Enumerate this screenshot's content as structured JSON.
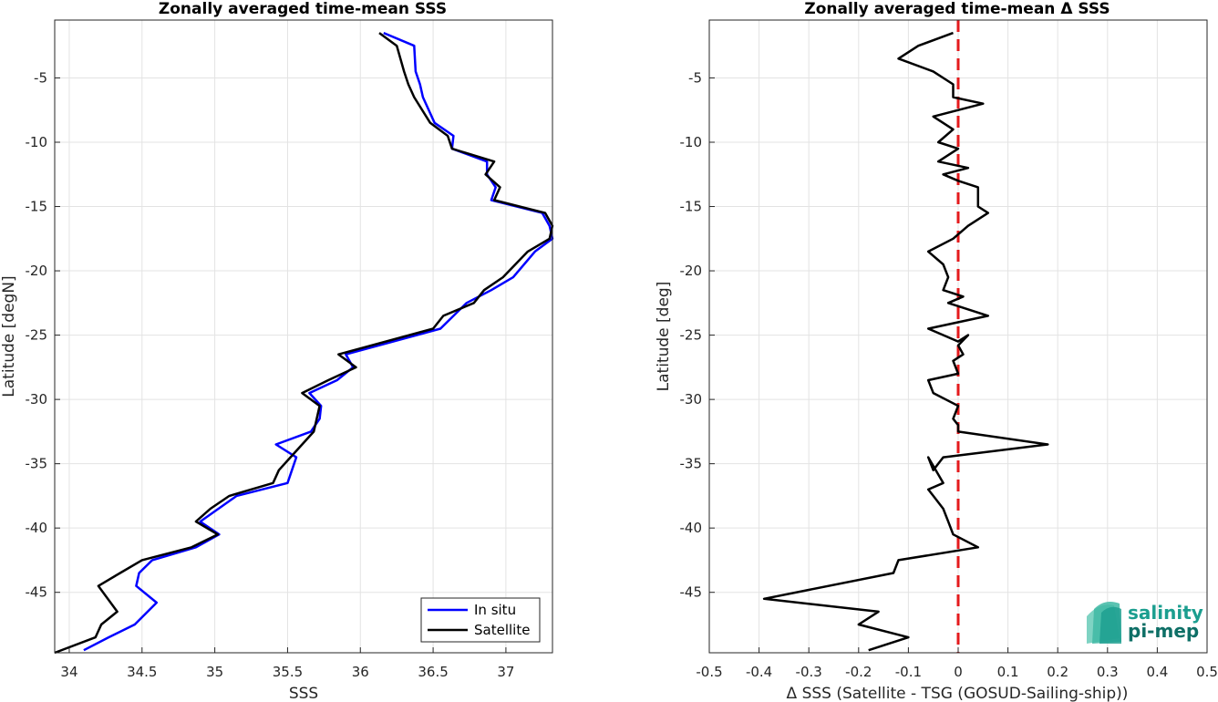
{
  "chart_data": [
    {
      "type": "line",
      "title": "Zonally averaged time-mean SSS",
      "xlabel": "SSS",
      "ylabel": "Latitude [degN]",
      "xlim": [
        33.9,
        37.32
      ],
      "ylim": [
        -49.7,
        -0.5
      ],
      "xticks": [
        "34",
        "34.5",
        "35",
        "35.5",
        "36",
        "36.5",
        "37"
      ],
      "yticks": [
        "-5",
        "-10",
        "-15",
        "-20",
        "-25",
        "-30",
        "-35",
        "-40",
        "-45"
      ],
      "grid": true,
      "legend_position": "bottom-right",
      "series": [
        {
          "name": "In situ",
          "color": "#0000ff",
          "points": [
            [
              36.16,
              -1.5
            ],
            [
              36.37,
              -2.5
            ],
            [
              36.38,
              -4.5
            ],
            [
              36.41,
              -5.5
            ],
            [
              36.43,
              -6.5
            ],
            [
              36.51,
              -8.5
            ],
            [
              36.64,
              -9.5
            ],
            [
              36.63,
              -10.5
            ],
            [
              36.87,
              -11.5
            ],
            [
              36.87,
              -12.5
            ],
            [
              36.93,
              -13.5
            ],
            [
              36.9,
              -14.5
            ],
            [
              37.25,
              -15.5
            ],
            [
              37.3,
              -16.5
            ],
            [
              37.32,
              -17.5
            ],
            [
              37.2,
              -18.5
            ],
            [
              37.05,
              -20.5
            ],
            [
              36.9,
              -21.5
            ],
            [
              36.73,
              -22.5
            ],
            [
              36.55,
              -24.5
            ],
            [
              35.9,
              -26.5
            ],
            [
              35.95,
              -27.5
            ],
            [
              35.84,
              -28.5
            ],
            [
              35.65,
              -29.5
            ],
            [
              35.73,
              -30.5
            ],
            [
              35.72,
              -31.5
            ],
            [
              35.66,
              -32.5
            ],
            [
              35.42,
              -33.5
            ],
            [
              35.56,
              -34.5
            ],
            [
              35.5,
              -36.5
            ],
            [
              35.15,
              -37.5
            ],
            [
              34.9,
              -39.5
            ],
            [
              35.03,
              -40.5
            ],
            [
              34.87,
              -41.5
            ],
            [
              34.57,
              -42.5
            ],
            [
              34.48,
              -43.5
            ],
            [
              34.46,
              -44.5
            ],
            [
              34.6,
              -45.8
            ],
            [
              34.45,
              -47.5
            ],
            [
              34.27,
              -48.5
            ],
            [
              34.1,
              -49.5
            ]
          ]
        },
        {
          "name": "Satellite",
          "color": "#000000",
          "points": [
            [
              36.13,
              -1.5
            ],
            [
              36.25,
              -2.5
            ],
            [
              36.3,
              -4.5
            ],
            [
              36.33,
              -5.5
            ],
            [
              36.37,
              -6.5
            ],
            [
              36.48,
              -8.5
            ],
            [
              36.6,
              -9.5
            ],
            [
              36.63,
              -10.5
            ],
            [
              36.92,
              -11.5
            ],
            [
              36.86,
              -12.5
            ],
            [
              36.96,
              -13.5
            ],
            [
              36.92,
              -14.5
            ],
            [
              37.27,
              -15.5
            ],
            [
              37.32,
              -16.5
            ],
            [
              37.3,
              -17.5
            ],
            [
              37.15,
              -18.5
            ],
            [
              36.98,
              -20.5
            ],
            [
              36.85,
              -21.5
            ],
            [
              36.78,
              -22.5
            ],
            [
              36.57,
              -23.5
            ],
            [
              36.5,
              -24.5
            ],
            [
              35.85,
              -26.5
            ],
            [
              35.97,
              -27.5
            ],
            [
              35.78,
              -28.5
            ],
            [
              35.6,
              -29.5
            ],
            [
              35.72,
              -30.5
            ],
            [
              35.7,
              -31.5
            ],
            [
              35.68,
              -32.5
            ],
            [
              35.6,
              -33.5
            ],
            [
              35.52,
              -34.5
            ],
            [
              35.44,
              -35.5
            ],
            [
              35.4,
              -36.5
            ],
            [
              35.1,
              -37.5
            ],
            [
              34.97,
              -38.5
            ],
            [
              34.87,
              -39.5
            ],
            [
              35.02,
              -40.5
            ],
            [
              34.84,
              -41.5
            ],
            [
              34.5,
              -42.5
            ],
            [
              34.35,
              -43.5
            ],
            [
              34.2,
              -44.5
            ],
            [
              34.33,
              -46.5
            ],
            [
              34.22,
              -47.5
            ],
            [
              34.18,
              -48.5
            ],
            [
              33.9,
              -49.7
            ]
          ]
        }
      ]
    },
    {
      "type": "line",
      "title": "Zonally averaged time-mean Δ SSS",
      "xlabel": "Δ SSS (Satellite - TSG (GOSUD-Sailing-ship))",
      "ylabel": "Latitude [deg]",
      "xlim": [
        -0.5,
        0.5
      ],
      "ylim": [
        -49.7,
        -0.5
      ],
      "xticks": [
        "-0.5",
        "-0.4",
        "-0.3",
        "-0.2",
        "-0.1",
        "0",
        "0.1",
        "0.2",
        "0.3",
        "0.4",
        "0.5"
      ],
      "yticks": [
        "-5",
        "-10",
        "-15",
        "-20",
        "-25",
        "-30",
        "-35",
        "-40",
        "-45"
      ],
      "grid": true,
      "reference_line": {
        "x": 0,
        "color": "#e41a1c",
        "style": "dashed"
      },
      "series": [
        {
          "color": "#000000",
          "points": [
            [
              -0.01,
              -1.5
            ],
            [
              -0.08,
              -2.5
            ],
            [
              -0.12,
              -3.5
            ],
            [
              -0.05,
              -4.5
            ],
            [
              -0.01,
              -5.5
            ],
            [
              -0.01,
              -6.5
            ],
            [
              0.05,
              -7
            ],
            [
              -0.05,
              -8
            ],
            [
              -0.01,
              -9
            ],
            [
              -0.04,
              -10
            ],
            [
              0.0,
              -10.5
            ],
            [
              -0.04,
              -11.5
            ],
            [
              0.02,
              -12
            ],
            [
              -0.03,
              -12.5
            ],
            [
              0.0,
              -13
            ],
            [
              0.04,
              -13.5
            ],
            [
              0.04,
              -15
            ],
            [
              0.06,
              -15.5
            ],
            [
              0.02,
              -16.5
            ],
            [
              -0.01,
              -17.5
            ],
            [
              -0.06,
              -18.5
            ],
            [
              -0.03,
              -19.5
            ],
            [
              -0.02,
              -20.5
            ],
            [
              -0.03,
              -21.5
            ],
            [
              0.01,
              -22
            ],
            [
              -0.02,
              -22.5
            ],
            [
              0.06,
              -23.5
            ],
            [
              -0.06,
              -24.5
            ],
            [
              0.0,
              -25.5
            ],
            [
              0.02,
              -25
            ],
            [
              0.0,
              -25.8
            ],
            [
              0.01,
              -26.5
            ],
            [
              -0.01,
              -27
            ],
            [
              0.0,
              -28
            ],
            [
              -0.06,
              -28.5
            ],
            [
              -0.05,
              -29.5
            ],
            [
              0.0,
              -30.5
            ],
            [
              -0.01,
              -31.5
            ],
            [
              0.0,
              -32
            ],
            [
              0.0,
              -32.5
            ],
            [
              0.18,
              -33.5
            ],
            [
              -0.03,
              -34.5
            ],
            [
              -0.05,
              -35.5
            ],
            [
              -0.06,
              -34.5
            ],
            [
              -0.03,
              -36.5
            ],
            [
              -0.06,
              -37
            ],
            [
              -0.05,
              -37.5
            ],
            [
              -0.03,
              -38.5
            ],
            [
              -0.02,
              -39.5
            ],
            [
              -0.01,
              -40.5
            ],
            [
              0.04,
              -41.5
            ],
            [
              -0.12,
              -42.5
            ],
            [
              -0.13,
              -43.5
            ],
            [
              -0.39,
              -45.5
            ],
            [
              -0.16,
              -46.5
            ],
            [
              -0.2,
              -47.5
            ],
            [
              -0.1,
              -48.5
            ],
            [
              -0.18,
              -49.5
            ]
          ]
        }
      ]
    }
  ],
  "legend": {
    "items": [
      {
        "label": "In situ",
        "color": "#0000ff"
      },
      {
        "label": "Satellite",
        "color": "#000000"
      }
    ]
  },
  "logo": {
    "line1": "salinity",
    "line2": "pi-mep",
    "icon": "salinity-wave-icon"
  }
}
